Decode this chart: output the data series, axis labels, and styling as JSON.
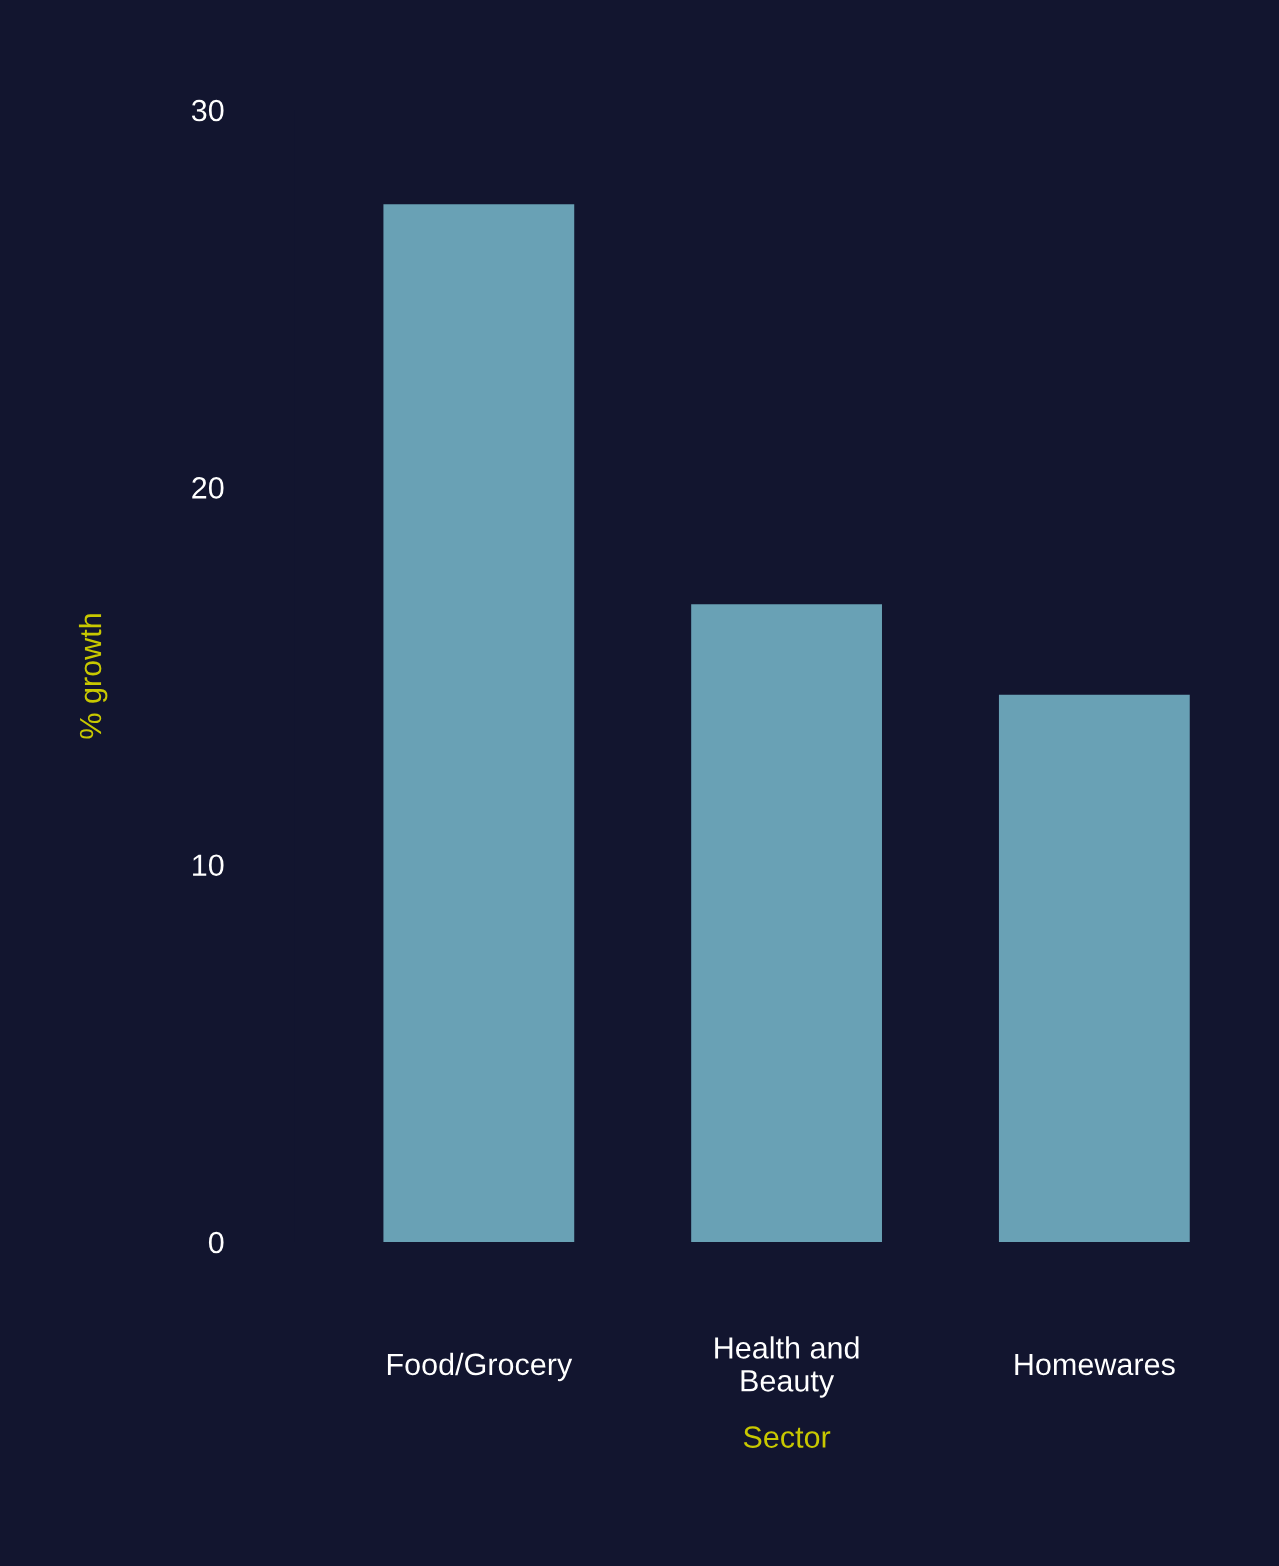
{
  "chart_data": {
    "type": "bar",
    "xlabel": "Sector",
    "ylabel": "% growth",
    "categories": [
      "Food/Grocery",
      "Health and\nBeauty",
      "Homewares"
    ],
    "values": [
      27.5,
      16.9,
      14.5
    ],
    "color": "#69a1b5",
    "ylim": [
      0,
      30
    ],
    "yticks": [
      0,
      10,
      20,
      30
    ],
    "grid": false
  }
}
